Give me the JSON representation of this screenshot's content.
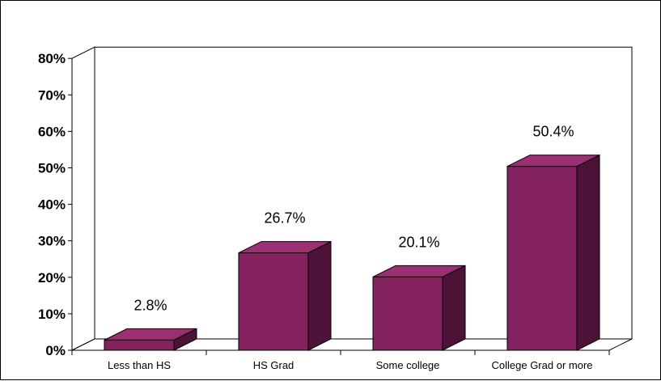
{
  "chart_data": {
    "type": "bar",
    "categories": [
      "Less than HS",
      "HS Grad",
      "Some college",
      "College Grad or more"
    ],
    "values": [
      2.8,
      26.7,
      20.1,
      50.4
    ],
    "data_labels": [
      "2.8%",
      "26.7%",
      "20.1%",
      "50.4%"
    ],
    "y_ticks": [
      "0%",
      "10%",
      "20%",
      "30%",
      "40%",
      "50%",
      "60%",
      "70%",
      "80%"
    ],
    "ylim": [
      0,
      80
    ],
    "grid": false,
    "legend": "none",
    "style": "3d-column",
    "colors": {
      "bar_front": "#84215f",
      "bar_top": "#9a2f72",
      "bar_side": "#4d1238",
      "outline": "#000000"
    }
  }
}
